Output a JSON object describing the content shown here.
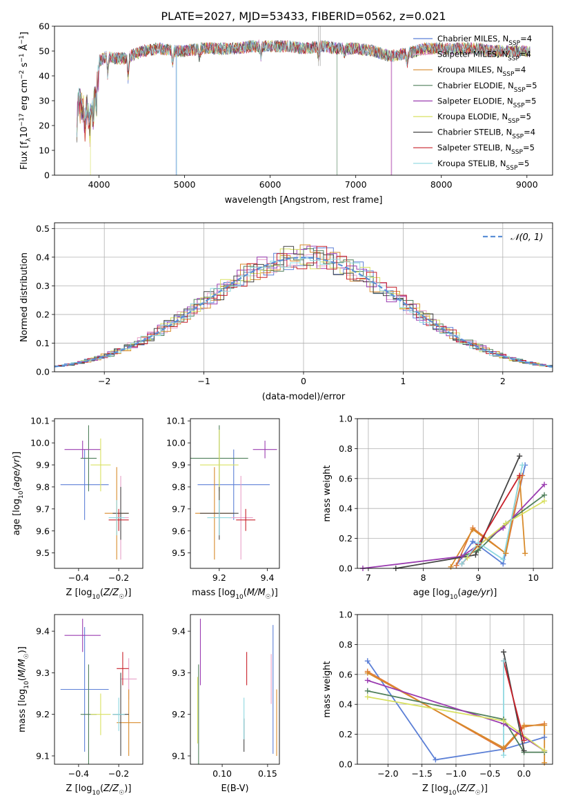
{
  "title": "PLATE=2027, MJD=53433, FIBERID=0562, z=0.021",
  "colors": [
    "#5b7fd6",
    "#e8a0c8",
    "#d88a2a",
    "#4f7f5a",
    "#9a3bb0",
    "#d8e060",
    "#444444",
    "#c8202a",
    "#8ed8e0"
  ],
  "chart_data": [
    {
      "id": "spectrum",
      "type": "line",
      "title": "PLATE=2027, MJD=53433, FIBERID=0562, z=0.021",
      "xlabel": "wavelength [Angstrom, rest frame]",
      "ylabel": "Flux [fλ10⁻¹⁷ erg cm⁻² s⁻¹ Å⁻¹]",
      "xlim": [
        3480,
        9300
      ],
      "ylim": [
        0,
        60
      ],
      "xticks": [
        4000,
        5000,
        6000,
        7000,
        8000,
        9000
      ],
      "yticks": [
        0,
        10,
        20,
        30,
        40,
        50,
        60
      ],
      "grid": false,
      "legend_position": "top-right",
      "continuum": {
        "x": [
          3740,
          3760,
          3800,
          3850,
          3900,
          3950,
          4000,
          4100,
          4200,
          4300,
          4500,
          4700,
          4900,
          5000,
          5200,
          5400,
          5600,
          5800,
          6000,
          6200,
          6400,
          6600,
          6800,
          7000,
          7200,
          7400,
          7600,
          7800,
          8000,
          8200,
          8400,
          8600,
          8800,
          9000
        ],
        "y": [
          24,
          34,
          32,
          31,
          33,
          40,
          46,
          48,
          47,
          47,
          50,
          51,
          50,
          50,
          51,
          51,
          51,
          52,
          52,
          52,
          51,
          52,
          51,
          51,
          50,
          48,
          49,
          51,
          51,
          51,
          51,
          50,
          50,
          50
        ]
      },
      "series": [
        {
          "name": "Chabrier MILES, N_SSP=4"
        },
        {
          "name": "Salpeter MILES, N_SSP=4"
        },
        {
          "name": "Kroupa MILES, N_SSP=4"
        },
        {
          "name": "Chabrier ELODIE, N_SSP=5"
        },
        {
          "name": "Salpeter ELODIE, N_SSP=5"
        },
        {
          "name": "Kroupa ELODIE, N_SSP=5"
        },
        {
          "name": "Chabrier STELIB, N_SSP=4"
        },
        {
          "name": "Salpeter STELIB, N_SSP=5"
        },
        {
          "name": "Kroupa STELIB, N_SSP=5"
        }
      ]
    },
    {
      "id": "residuals",
      "type": "line",
      "xlabel": "(data-model)/error",
      "ylabel": "Normed distribution",
      "xlim": [
        -2.5,
        2.5
      ],
      "ylim": [
        0,
        0.52
      ],
      "xticks": [
        -2,
        -1,
        0,
        1,
        2
      ],
      "yticks": [
        0.0,
        0.1,
        0.2,
        0.3,
        0.4,
        0.5
      ],
      "grid": true,
      "legend_position": "top-right",
      "reference_series": {
        "name": "𝒩(0, 1)",
        "style": "dashed"
      }
    },
    {
      "id": "age_vs_Z",
      "type": "scatter",
      "xlabel": "Z [log10(Z/Z☉)]",
      "ylabel": "age [log10(age/yr)]",
      "xlim": [
        -0.52,
        -0.08
      ],
      "ylim": [
        9.43,
        10.11
      ],
      "xticks": [
        -0.4,
        -0.2
      ],
      "yticks": [
        9.5,
        9.6,
        9.7,
        9.8,
        9.9,
        10.0,
        10.1
      ],
      "points": [
        {
          "x": -0.37,
          "y": 9.81,
          "xerr": 0.12,
          "yerr": 0.16
        },
        {
          "x": -0.19,
          "y": 9.66,
          "xerr": 0.04,
          "yerr": 0.19
        },
        {
          "x": -0.21,
          "y": 9.68,
          "xerr": 0.06,
          "yerr": 0.21
        },
        {
          "x": -0.35,
          "y": 9.93,
          "xerr": 0.04,
          "yerr": 0.15
        },
        {
          "x": -0.38,
          "y": 9.97,
          "xerr": 0.09,
          "yerr": 0.04
        },
        {
          "x": -0.29,
          "y": 9.9,
          "xerr": 0.05,
          "yerr": 0.12
        },
        {
          "x": -0.19,
          "y": 9.68,
          "xerr": 0.04,
          "yerr": 0.12
        },
        {
          "x": -0.2,
          "y": 9.65,
          "xerr": 0.05,
          "yerr": 0.05
        },
        {
          "x": -0.21,
          "y": 9.66,
          "xerr": 0.04,
          "yerr": 0.08
        }
      ]
    },
    {
      "id": "age_vs_mass",
      "type": "scatter",
      "xlabel": "mass [log10(M/M☉)]",
      "ylabel": "",
      "xlim": [
        9.08,
        9.45
      ],
      "ylim": [
        9.43,
        10.11
      ],
      "xticks": [
        9.2,
        9.4
      ],
      "yticks": [
        9.5,
        9.6,
        9.7,
        9.8,
        9.9,
        10.0,
        10.1
      ],
      "points": [
        {
          "x": 9.26,
          "y": 9.81,
          "xerr": 0.15,
          "yerr": 0.16
        },
        {
          "x": 9.29,
          "y": 9.66,
          "xerr": 0.05,
          "yerr": 0.19
        },
        {
          "x": 9.18,
          "y": 9.68,
          "xerr": 0.08,
          "yerr": 0.21
        },
        {
          "x": 9.2,
          "y": 9.93,
          "xerr": 0.12,
          "yerr": 0.15
        },
        {
          "x": 9.39,
          "y": 9.97,
          "xerr": 0.05,
          "yerr": 0.04
        },
        {
          "x": 9.2,
          "y": 9.9,
          "xerr": 0.08,
          "yerr": 0.16
        },
        {
          "x": 9.2,
          "y": 9.68,
          "xerr": 0.08,
          "yerr": 0.12
        },
        {
          "x": 9.31,
          "y": 9.65,
          "xerr": 0.04,
          "yerr": 0.05
        },
        {
          "x": 9.2,
          "y": 9.66,
          "xerr": 0.05,
          "yerr": 0.08
        }
      ]
    },
    {
      "id": "weight_vs_age",
      "type": "line",
      "xlabel": "age [log10(age/yr)]",
      "ylabel": "mass weight",
      "xlim": [
        6.8,
        10.35
      ],
      "ylim": [
        0,
        1
      ],
      "xticks": [
        7,
        8,
        9,
        10
      ],
      "yticks": [
        0.0,
        0.2,
        0.4,
        0.6,
        0.8,
        1.0
      ],
      "grid": true,
      "series": [
        {
          "x": [
            8.6,
            8.9,
            9.45,
            9.85
          ],
          "y": [
            0.02,
            0.18,
            0.03,
            0.69
          ]
        },
        {
          "x": [
            8.6,
            8.9,
            9.5,
            9.8
          ],
          "y": [
            0.02,
            0.27,
            0.1,
            0.62
          ]
        },
        {
          "x": [
            8.5,
            8.9,
            9.5,
            9.75,
            9.85
          ],
          "y": [
            0.01,
            0.26,
            0.1,
            0.61,
            0.1
          ]
        },
        {
          "x": [
            8.7,
            9.0,
            9.5,
            10.2
          ],
          "y": [
            0.08,
            0.12,
            0.3,
            0.49
          ]
        },
        {
          "x": [
            6.9,
            8.7,
            9.45,
            10.2
          ],
          "y": [
            0.0,
            0.08,
            0.27,
            0.56
          ]
        },
        {
          "x": [
            8.8,
            9.0,
            9.5,
            10.2
          ],
          "y": [
            0.07,
            0.15,
            0.3,
            0.45
          ]
        },
        {
          "x": [
            7.5,
            8.95,
            9.75
          ],
          "y": [
            0.0,
            0.09,
            0.75
          ]
        },
        {
          "x": [
            8.7,
            9.0,
            9.75
          ],
          "y": [
            0.03,
            0.16,
            0.62
          ]
        },
        {
          "x": [
            8.7,
            9.0,
            9.45,
            9.8
          ],
          "y": [
            0.03,
            0.17,
            0.06,
            0.69
          ]
        }
      ]
    },
    {
      "id": "mass_vs_Z",
      "type": "scatter",
      "xlabel": "Z [log10(Z/Z☉)]",
      "ylabel": "mass [log10(M/M☉)]",
      "xlim": [
        -0.52,
        -0.08
      ],
      "ylim": [
        9.08,
        9.44
      ],
      "xticks": [
        -0.4,
        -0.2
      ],
      "yticks": [
        9.1,
        9.2,
        9.3,
        9.4
      ],
      "points": [
        {
          "x": -0.37,
          "y": 9.26,
          "xerr": 0.12,
          "yerr": 0.15
        },
        {
          "x": -0.15,
          "y": 9.285,
          "xerr": 0.04,
          "yerr": 0.05
        },
        {
          "x": -0.15,
          "y": 9.18,
          "xerr": 0.06,
          "yerr": 0.08
        },
        {
          "x": -0.35,
          "y": 9.2,
          "xerr": 0.04,
          "yerr": 0.12
        },
        {
          "x": -0.38,
          "y": 9.39,
          "xerr": 0.09,
          "yerr": 0.04
        },
        {
          "x": -0.29,
          "y": 9.2,
          "xerr": 0.05,
          "yerr": 0.05
        },
        {
          "x": -0.19,
          "y": 9.2,
          "xerr": 0.04,
          "yerr": 0.1
        },
        {
          "x": -0.18,
          "y": 9.31,
          "xerr": 0.03,
          "yerr": 0.04
        },
        {
          "x": -0.2,
          "y": 9.2,
          "xerr": 0.03,
          "yerr": 0.04
        }
      ]
    },
    {
      "id": "mass_vs_EBV",
      "type": "scatter",
      "xlabel": "E(B-V)",
      "ylabel": "",
      "xlim": [
        0.065,
        0.163
      ],
      "ylim": [
        9.08,
        9.44
      ],
      "xticks": [
        0.1,
        0.15
      ],
      "yticks": [
        9.1,
        9.2,
        9.3,
        9.4
      ],
      "points": [
        {
          "x": 0.156,
          "y": 9.26,
          "yerr": 0.155
        },
        {
          "x": 0.154,
          "y": 9.285,
          "yerr": 0.06
        },
        {
          "x": 0.16,
          "y": 9.18,
          "yerr": 0.08
        },
        {
          "x": 0.074,
          "y": 9.2,
          "yerr": 0.12
        },
        {
          "x": 0.076,
          "y": 9.35,
          "yerr": 0.08
        },
        {
          "x": 0.073,
          "y": 9.21,
          "yerr": 0.08
        },
        {
          "x": 0.124,
          "y": 9.15,
          "yerr": 0.04
        },
        {
          "x": 0.127,
          "y": 9.31,
          "yerr": 0.04
        },
        {
          "x": 0.124,
          "y": 9.19,
          "yerr": 0.05
        }
      ]
    },
    {
      "id": "weight_vs_Z",
      "type": "line",
      "xlabel": "Z [log10(Z/Z☉)]",
      "ylabel": "mass weight",
      "xlim": [
        -2.45,
        0.42
      ],
      "ylim": [
        0,
        1
      ],
      "xticks": [
        -2.0,
        -1.5,
        -1.0,
        -0.5,
        0.0
      ],
      "yticks": [
        0.0,
        0.2,
        0.4,
        0.6,
        0.8,
        1.0
      ],
      "grid": true,
      "series": [
        {
          "x": [
            -2.3,
            -1.3,
            -0.3,
            0.3
          ],
          "y": [
            0.69,
            0.03,
            0.1,
            0.18
          ]
        },
        {
          "x": [
            -2.3,
            -0.3,
            0.0,
            0.3
          ],
          "y": [
            0.62,
            0.1,
            0.25,
            0.27
          ]
        },
        {
          "x": [
            -2.3,
            -0.3,
            0.0,
            0.3,
            0.3
          ],
          "y": [
            0.61,
            0.11,
            0.26,
            0.26,
            0.01
          ]
        },
        {
          "x": [
            -2.3,
            -0.3,
            0.0,
            0.3
          ],
          "y": [
            0.49,
            0.3,
            0.08,
            0.08
          ]
        },
        {
          "x": [
            -2.3,
            -0.3,
            0.3
          ],
          "y": [
            0.56,
            0.27,
            0.09
          ]
        },
        {
          "x": [
            -2.3,
            -0.3,
            0.3
          ],
          "y": [
            0.45,
            0.29,
            0.09
          ]
        },
        {
          "x": [
            -0.3,
            0.0
          ],
          "y": [
            0.75,
            0.09
          ]
        },
        {
          "x": [
            -0.3,
            0.0
          ],
          "y": [
            0.69,
            0.16
          ]
        },
        {
          "x": [
            -0.3,
            -0.3
          ],
          "y": [
            0.69,
            0.06
          ]
        }
      ]
    }
  ]
}
